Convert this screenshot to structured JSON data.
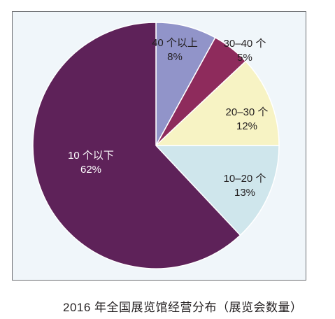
{
  "caption": "2016 年全国展览馆经营分布（展览会数量）",
  "chart_data": {
    "type": "pie",
    "title": "",
    "slices": [
      {
        "label": "40 个以上",
        "value": 8,
        "pct_label": "8%",
        "color": "#9194c9",
        "text_color": "#231f20"
      },
      {
        "label": "30–40 个",
        "value": 5,
        "pct_label": "5%",
        "color": "#8e2b5c",
        "text_color": "#231f20"
      },
      {
        "label": "20–30 个",
        "value": 12,
        "pct_label": "12%",
        "color": "#f7f3c4",
        "text_color": "#231f20"
      },
      {
        "label": "10–20 个",
        "value": 13,
        "pct_label": "13%",
        "color": "#cfe6ec",
        "text_color": "#231f20"
      },
      {
        "label": "10 个以下",
        "value": 62,
        "pct_label": "62%",
        "color": "#5e2259",
        "text_color": "#ffffff"
      }
    ],
    "start_angle": "12 o'clock",
    "direction": "clockwise"
  }
}
